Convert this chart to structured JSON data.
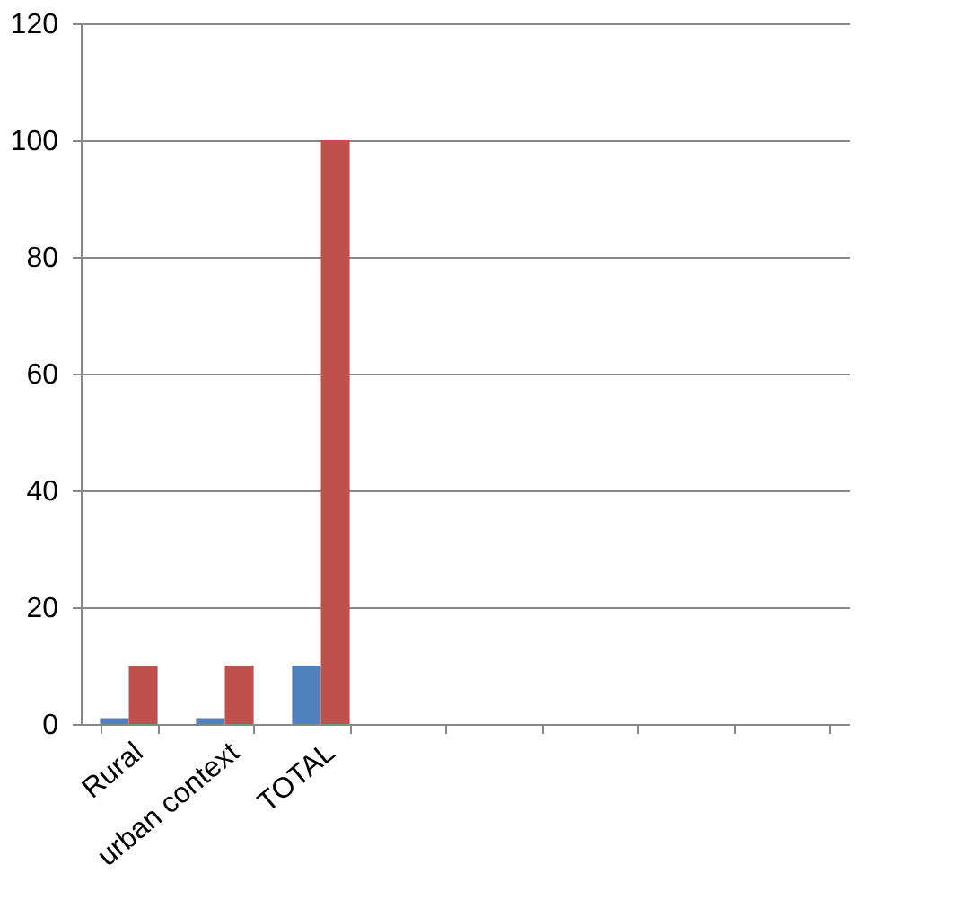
{
  "chart_data": {
    "type": "bar",
    "categories": [
      "Rural",
      "urban context",
      "TOTAL",
      null,
      null,
      null,
      null,
      null
    ],
    "series": [
      {
        "color": "#4f81bd",
        "values": [
          1,
          1,
          10,
          null,
          null,
          null,
          null,
          null
        ]
      },
      {
        "color": "#c0504d",
        "values": [
          10,
          10,
          100,
          null,
          null,
          null,
          null,
          null
        ]
      }
    ],
    "ylim": [
      0,
      120
    ],
    "yticks": [
      0,
      20,
      40,
      60,
      80,
      100,
      120
    ],
    "grid": "y",
    "legend": false
  }
}
